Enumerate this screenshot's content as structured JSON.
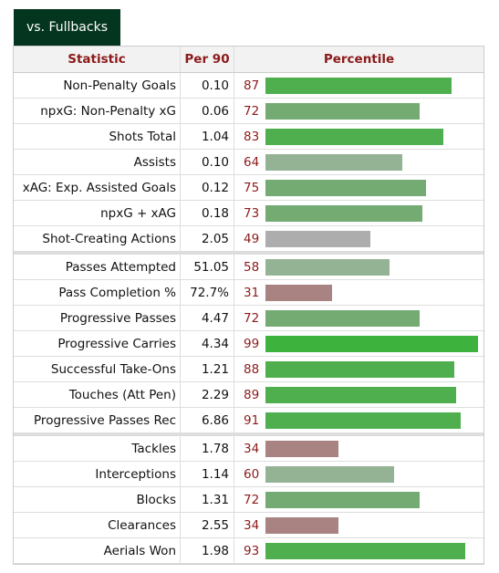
{
  "tab": {
    "label": "vs. Fullbacks"
  },
  "header": {
    "statistic": "Statistic",
    "per90": "Per 90",
    "percentile": "Percentile"
  },
  "colors": {
    "high": "#3db33d",
    "mid_high": "#5fb35f",
    "mid": "#7aad7a",
    "neutral": "#a9a9a9",
    "low": "#a98585",
    "grey_green": "#8fb08f"
  },
  "groups": [
    [
      {
        "stat": "Non-Penalty Goals",
        "per90": "0.10",
        "percentile": 87
      },
      {
        "stat": "npxG: Non-Penalty xG",
        "per90": "0.06",
        "percentile": 72
      },
      {
        "stat": "Shots Total",
        "per90": "1.04",
        "percentile": 83
      },
      {
        "stat": "Assists",
        "per90": "0.10",
        "percentile": 64
      },
      {
        "stat": "xAG: Exp. Assisted Goals",
        "per90": "0.12",
        "percentile": 75
      },
      {
        "stat": "npxG + xAG",
        "per90": "0.18",
        "percentile": 73
      },
      {
        "stat": "Shot-Creating Actions",
        "per90": "2.05",
        "percentile": 49
      }
    ],
    [
      {
        "stat": "Passes Attempted",
        "per90": "51.05",
        "percentile": 58
      },
      {
        "stat": "Pass Completion %",
        "per90": "72.7%",
        "percentile": 31
      },
      {
        "stat": "Progressive Passes",
        "per90": "4.47",
        "percentile": 72
      },
      {
        "stat": "Progressive Carries",
        "per90": "4.34",
        "percentile": 99
      },
      {
        "stat": "Successful Take-Ons",
        "per90": "1.21",
        "percentile": 88
      },
      {
        "stat": "Touches (Att Pen)",
        "per90": "2.29",
        "percentile": 89
      },
      {
        "stat": "Progressive Passes Rec",
        "per90": "6.86",
        "percentile": 91
      }
    ],
    [
      {
        "stat": "Tackles",
        "per90": "1.78",
        "percentile": 34
      },
      {
        "stat": "Interceptions",
        "per90": "1.14",
        "percentile": 60
      },
      {
        "stat": "Blocks",
        "per90": "1.31",
        "percentile": 72
      },
      {
        "stat": "Clearances",
        "per90": "2.55",
        "percentile": 34
      },
      {
        "stat": "Aerials Won",
        "per90": "1.98",
        "percentile": 93
      }
    ]
  ]
}
